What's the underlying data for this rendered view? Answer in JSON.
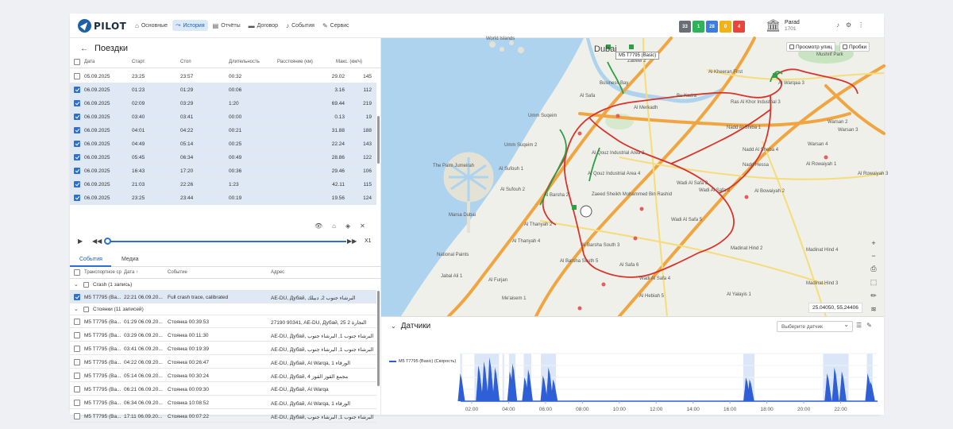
{
  "app": {
    "logo": "PILOT"
  },
  "nav": [
    {
      "icon": "home-icon",
      "glyph": "⌂",
      "label": "Основные"
    },
    {
      "icon": "route-icon",
      "glyph": "⤳",
      "label": "История",
      "active": true
    },
    {
      "icon": "report-icon",
      "glyph": "▤",
      "label": "Отчёты"
    },
    {
      "icon": "folder-icon",
      "glyph": "▬",
      "label": "Договор"
    },
    {
      "icon": "bell-icon",
      "glyph": "♪",
      "label": "События"
    },
    {
      "icon": "wrench-icon",
      "glyph": "✎",
      "label": "Сервис"
    }
  ],
  "badges": [
    {
      "value": "33",
      "color": "#6b6f75"
    },
    {
      "value": "1",
      "color": "#2fb35a"
    },
    {
      "value": "28",
      "color": "#3d7be0"
    },
    {
      "value": "0",
      "color": "#f0b41a"
    },
    {
      "value": "4",
      "color": "#e8453c"
    }
  ],
  "user": {
    "name": "Parad",
    "id": "1701"
  },
  "trips": {
    "title": "Поездки",
    "headers": [
      "Дата",
      "Старт",
      "Стоп",
      "Длительность",
      "Расстояние (км)",
      "Макс. (км/ч)"
    ],
    "rows": [
      {
        "date": "05.09.2025",
        "start": "23:25",
        "stop": "23:57",
        "duration": "00:32",
        "distance": "29.02",
        "max": "145",
        "selected": false
      },
      {
        "date": "06.09.2025",
        "start": "01:23",
        "stop": "01:29",
        "duration": "00:06",
        "distance": "3.16",
        "max": "112",
        "selected": true
      },
      {
        "date": "06.09.2025",
        "start": "02:09",
        "stop": "03:29",
        "duration": "1:20",
        "distance": "69.44",
        "max": "219",
        "selected": true
      },
      {
        "date": "06.09.2025",
        "start": "03:40",
        "stop": "03:41",
        "duration": "00:00",
        "distance": "0.13",
        "max": "19",
        "selected": true
      },
      {
        "date": "06.09.2025",
        "start": "04:01",
        "stop": "04:22",
        "duration": "00:21",
        "distance": "31.88",
        "max": "188",
        "selected": true
      },
      {
        "date": "06.09.2025",
        "start": "04:49",
        "stop": "05:14",
        "duration": "00:25",
        "distance": "22.24",
        "max": "143",
        "selected": true
      },
      {
        "date": "06.09.2025",
        "start": "05:45",
        "stop": "06:34",
        "duration": "00:49",
        "distance": "28.86",
        "max": "122",
        "selected": true
      },
      {
        "date": "06.09.2025",
        "start": "16:43",
        "stop": "17:20",
        "duration": "00:36",
        "distance": "29.46",
        "max": "106",
        "selected": true
      },
      {
        "date": "06.09.2025",
        "start": "21:03",
        "stop": "22:26",
        "duration": "1:23",
        "distance": "42.11",
        "max": "115",
        "selected": true
      },
      {
        "date": "06.09.2025",
        "start": "23:25",
        "stop": "23:44",
        "duration": "00:19",
        "distance": "19.56",
        "max": "124",
        "selected": true
      }
    ]
  },
  "player": {
    "speed": "X1"
  },
  "events_tabs": [
    "События",
    "Медиа"
  ],
  "events": {
    "headers": [
      "Транспортное ср",
      "Дата ↑",
      "Событие",
      "Адрес"
    ],
    "group1": "Crash (1 запись)",
    "crash": {
      "vehicle": "M5 T7795 (Ba...",
      "date": "22:21 06.09.20...",
      "event": "Full crash trace, calibrated",
      "address": "AE-DU, Дубай, البرشاء جنوب 2, دبيلك"
    },
    "group2": "Стоянки (11 записей)",
    "rows": [
      {
        "vehicle": "M5 T7795 (Ba...",
        "date": "01:29 06.09.20...",
        "event": "Стоянка 00:39:53",
        "address": "27190 90341, AE-DU, Дубай, 25 التجارة 2"
      },
      {
        "vehicle": "M5 T7795 (Ba...",
        "date": "03:29 06.09.20...",
        "event": "Стоянка 00:11:30",
        "address": "AE-DU, Дубай, البرشاء جنوب 1, البرشاء جنوب"
      },
      {
        "vehicle": "M5 T7795 (Ba...",
        "date": "03:41 06.09.20...",
        "event": "Стоянка 00:19:39",
        "address": "AE-DU, Дубай, البرشاء جنوب 1, البرشاء جنوب"
      },
      {
        "vehicle": "M5 T7795 (Ba...",
        "date": "04:22 06.09.20...",
        "event": "Стоянка 00:26:47",
        "address": "AE-DU, Дубай, Al Warqa, الورقاء 1"
      },
      {
        "vehicle": "M5 T7795 (Ba...",
        "date": "05:14 06.09.20...",
        "event": "Стоянка 00:30:24",
        "address": "AE-DU, Дубай, 4 مجمع القوز القوز"
      },
      {
        "vehicle": "M5 T7795 (Ba...",
        "date": "06:21 06.09.20...",
        "event": "Стоянка 00:09:30",
        "address": "AE-DU, Дубай, Al Warqa"
      },
      {
        "vehicle": "M5 T7795 (Ba...",
        "date": "06:34 06.09.20...",
        "event": "Стоянка 10:08:52",
        "address": "AE-DU, Дубай, Al Warqa, الورقاء 1"
      },
      {
        "vehicle": "M5 T7795 (Ba...",
        "date": "17:11 06.09.20...",
        "event": "Стоянка 00:07:22",
        "address": "AE-DU, Дубай, البرشاء جنوب 1, البرشاء جنوب"
      }
    ]
  },
  "map": {
    "street_view": "Просмотр улиц",
    "traffic": "Пробки",
    "coords": "25.04050, 55.24406",
    "vehicle_label": "M5 T7795 (Basic)",
    "labels": [
      "Dubai",
      "World Islands",
      "Zabeel 2",
      "Mushrif Park",
      "Business Bay",
      "Al Safa",
      "Al Kheeran First",
      "Al Merkadh",
      "Bu Kadra",
      "Ras Al Khor Industrial 3",
      "Al Warqaa 3",
      "Umm Suqeim",
      "Umm Suqeim 2",
      "Nadd Al Shiba 1",
      "Warsan 2",
      "Warsan 3",
      "Al Qouz Industrial Area 2",
      "Nadd Al Sheba 4",
      "Warsan 4",
      "The Palm Jumeirah",
      "Al Sufouh 1",
      "Al Qouz Industrial Area 4",
      "Nadd Hessa",
      "Al Rowaiyah 1",
      "Al Rowaiyah 3",
      "Al Sufouh 2",
      "Al Barsha 2",
      "Zaeed Sheikh Mohammed Bin Rashid",
      "Wadi Al Safa 3",
      "Wadi Al Safa 2",
      "Al Bowaiyah 2",
      "Marsa Dubai",
      "Al Thanyah 2",
      "Wadi Al Safa 5",
      "Al Thanyah 4",
      "Al Barsha South 3",
      "Al Barsha South 5",
      "Al Safa 6",
      "Madinat Hind 2",
      "Madinat Hind 4",
      "National Paints",
      "Jabal Ali 1",
      "Al Furjan",
      "Wadi Al Safa 4",
      "Madinat Hind 3",
      "Me'aisem 1",
      "Al Hebiah 5",
      "Al Yalayis 1"
    ]
  },
  "sensors": {
    "title": "Датчики",
    "select_placeholder": "Выберите датчик",
    "legend": "M5 T7795 (Basic) (Скорость)"
  },
  "chart_data": {
    "type": "area",
    "title": "",
    "series": [
      {
        "name": "M5 T7795 (Basic) (Скорость)"
      }
    ],
    "x_ticks": [
      "02:00",
      "04:00",
      "06:00",
      "08:00",
      "10:00",
      "12:00",
      "14:00",
      "16:00",
      "18:00",
      "20:00",
      "22:00"
    ],
    "x_range_hours": [
      1.4,
      24
    ],
    "trip_periods_hours": [
      [
        1.38,
        1.48
      ],
      [
        2.15,
        3.48
      ],
      [
        3.67,
        3.68
      ],
      [
        4.02,
        4.37
      ],
      [
        4.82,
        5.23
      ],
      [
        5.75,
        6.57
      ],
      [
        16.72,
        17.33
      ],
      [
        21.05,
        22.43
      ],
      [
        23.42,
        23.73
      ]
    ],
    "peaks_hours": [
      [
        1.42,
        70
      ],
      [
        2.4,
        90
      ],
      [
        2.7,
        100
      ],
      [
        3.0,
        110
      ],
      [
        3.3,
        85
      ],
      [
        4.1,
        75
      ],
      [
        4.25,
        95
      ],
      [
        4.9,
        60
      ],
      [
        5.1,
        80
      ],
      [
        5.9,
        65
      ],
      [
        6.2,
        85
      ],
      [
        6.45,
        55
      ],
      [
        16.9,
        60
      ],
      [
        17.1,
        55
      ],
      [
        21.3,
        70
      ],
      [
        21.7,
        85
      ],
      [
        22.1,
        75
      ],
      [
        23.5,
        70
      ],
      [
        23.65,
        50
      ]
    ]
  }
}
